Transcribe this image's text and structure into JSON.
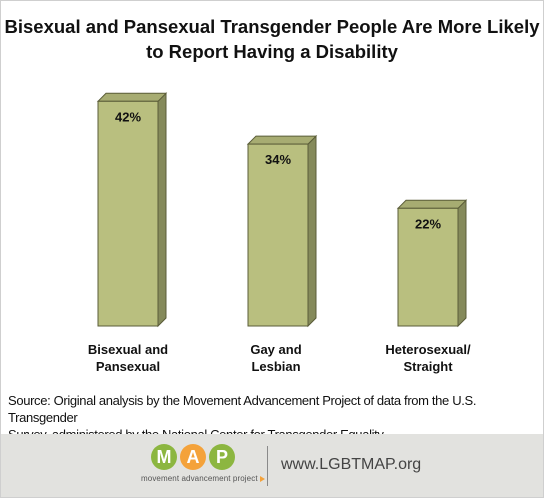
{
  "chart_data": {
    "type": "bar",
    "title_lines": [
      "Bisexual and Pansexual Transgender People Are More Likely",
      "to Report Having a Disability"
    ],
    "categories": [
      [
        "Bisexual and",
        "Pansexual"
      ],
      [
        "Gay and",
        "Lesbian"
      ],
      [
        "Heterosexual/",
        "Straight"
      ]
    ],
    "values": [
      42,
      34,
      22
    ],
    "value_labels": [
      "42%",
      "34%",
      "22%"
    ],
    "ylim": [
      0,
      45
    ],
    "grid": false,
    "bar_color": "#b9bf7f"
  },
  "source_lines": [
    "Source: Original analysis by the Movement Advancement Project of data from the U.S. Transgender",
    "Survey, administered by the National Center for Transgender Equality."
  ],
  "footer": {
    "logo_letters": [
      "M",
      "A",
      "P"
    ],
    "logo_colors": [
      "#8cb640",
      "#f4a23a",
      "#8cb640"
    ],
    "logo_subtitle": "movement advancement project",
    "url": "www.LGBTMAP.org"
  }
}
